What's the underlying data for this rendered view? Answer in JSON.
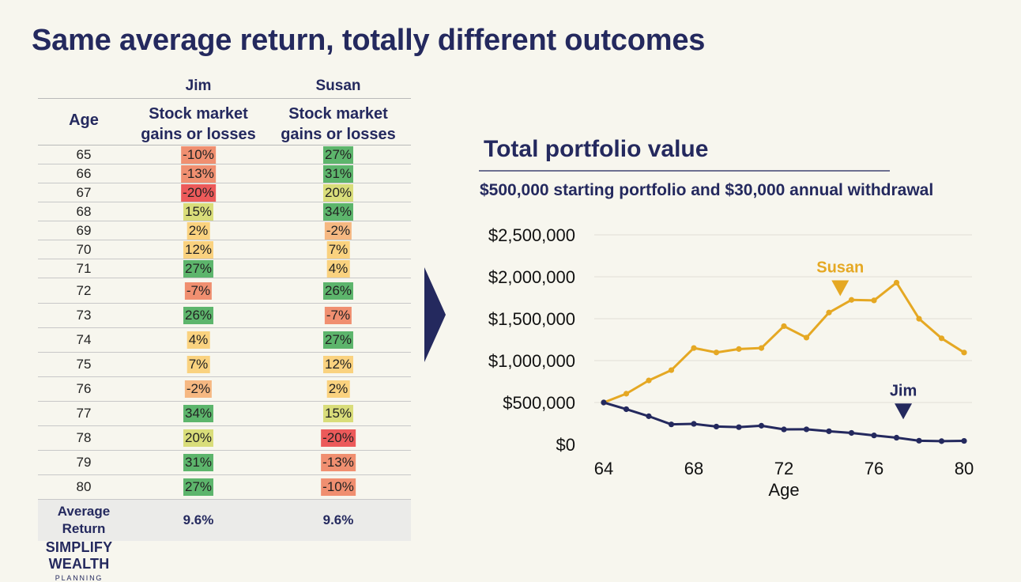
{
  "title": "Same average return, totally different outcomes",
  "table": {
    "header_names": {
      "jim": "Jim",
      "susan": "Susan"
    },
    "age_header": "Age",
    "col_header_line1": "Stock market",
    "col_header_line2": "gains or losses",
    "rows": [
      {
        "age": "65",
        "jim": "-10%",
        "susan": "27%"
      },
      {
        "age": "66",
        "jim": "-13%",
        "susan": "31%"
      },
      {
        "age": "67",
        "jim": "-20%",
        "susan": "20%"
      },
      {
        "age": "68",
        "jim": "15%",
        "susan": "34%"
      },
      {
        "age": "69",
        "jim": "2%",
        "susan": "-2%"
      },
      {
        "age": "70",
        "jim": "12%",
        "susan": "7%"
      },
      {
        "age": "71",
        "jim": "27%",
        "susan": "4%"
      },
      {
        "age": "72",
        "jim": "-7%",
        "susan": "26%"
      },
      {
        "age": "73",
        "jim": "26%",
        "susan": "-7%"
      },
      {
        "age": "74",
        "jim": "4%",
        "susan": "27%"
      },
      {
        "age": "75",
        "jim": "7%",
        "susan": "12%"
      },
      {
        "age": "76",
        "jim": "-2%",
        "susan": "2%"
      },
      {
        "age": "77",
        "jim": "34%",
        "susan": "15%"
      },
      {
        "age": "78",
        "jim": "20%",
        "susan": "-20%"
      },
      {
        "age": "79",
        "jim": "31%",
        "susan": "-13%"
      },
      {
        "age": "80",
        "jim": "27%",
        "susan": "-10%"
      }
    ],
    "avg_label_line1": "Average",
    "avg_label_line2": "Return",
    "avg_jim": "9.6%",
    "avg_susan": "9.6%"
  },
  "chart_data": {
    "type": "line",
    "title": "Total portfolio value",
    "subtitle": "$500,000 starting portfolio and $30,000 annual withdrawal",
    "xlabel": "Age",
    "x": [
      64,
      65,
      66,
      67,
      68,
      69,
      70,
      71,
      72,
      73,
      74,
      75,
      76,
      77,
      78,
      79,
      80
    ],
    "xlim": [
      64,
      80
    ],
    "xticks": [
      64,
      68,
      72,
      76,
      80
    ],
    "xtick_labels": [
      "64",
      "68",
      "72",
      "76",
      "80"
    ],
    "ylim": [
      0,
      2500000
    ],
    "yticks": [
      0,
      500000,
      1000000,
      1500000,
      2000000,
      2500000
    ],
    "ytick_labels": [
      "$0",
      "$500,000",
      "$1,000,000",
      "$1,500,000",
      "$2,000,000",
      "$2,500,000"
    ],
    "grid": true,
    "series": [
      {
        "name": "Susan",
        "color": "#e5a823",
        "values": [
          500000,
          605000,
          763000,
          886000,
          1150000,
          1097000,
          1138000,
          1150000,
          1411000,
          1274000,
          1573000,
          1724000,
          1718000,
          1930000,
          1499000,
          1266000,
          1096000
        ]
      },
      {
        "name": "Jim",
        "color": "#24295e",
        "values": [
          500000,
          420000,
          336000,
          239000,
          245000,
          213000,
          206000,
          223000,
          179000,
          180000,
          157000,
          137000,
          107000,
          80000,
          44000,
          39000,
          42000
        ]
      }
    ]
  },
  "colors": {
    "title": "#24295e",
    "neg_strong": "#ec5a5a",
    "neg_mid": "#f08f70",
    "neg_light": "#f6b882",
    "pos_light": "#fad27f",
    "pos_mid": "#d9dd7a",
    "pos_strong": "#5db56c"
  },
  "logo": {
    "line1": "SIMPLIFY WEALTH",
    "line2": "PLANNING"
  }
}
